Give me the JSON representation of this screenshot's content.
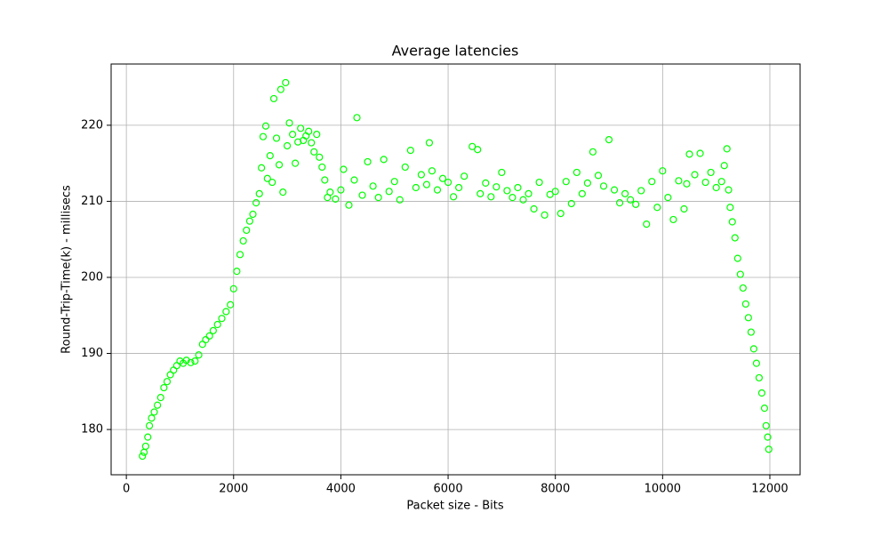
{
  "chart_data": {
    "type": "scatter",
    "title": "Average latencies",
    "x_label": "Packet size - Bits",
    "y_label": "Round-Trip-Time(k) - millisecs",
    "color": "#00ff00",
    "grid": true,
    "xlim": [
      -284,
      12564
    ],
    "ylim": [
      174.05,
      228.05
    ],
    "xticks": [
      0,
      2000,
      4000,
      6000,
      8000,
      10000,
      12000
    ],
    "yticks": [
      180,
      190,
      200,
      210,
      220
    ],
    "x": [
      300,
      330,
      360,
      400,
      430,
      470,
      520,
      580,
      640,
      700,
      760,
      820,
      880,
      940,
      1000,
      1060,
      1120,
      1200,
      1280,
      1350,
      1420,
      1480,
      1550,
      1620,
      1700,
      1780,
      1860,
      1940,
      2000,
      2060,
      2120,
      2180,
      2240,
      2300,
      2360,
      2420,
      2480,
      2520,
      2550,
      2600,
      2630,
      2680,
      2720,
      2750,
      2800,
      2850,
      2880,
      2920,
      2970,
      3000,
      3040,
      3100,
      3150,
      3200,
      3250,
      3300,
      3350,
      3400,
      3450,
      3500,
      3550,
      3600,
      3650,
      3700,
      3750,
      3800,
      3900,
      4000,
      4050,
      4150,
      4250,
      4300,
      4400,
      4500,
      4600,
      4700,
      4800,
      4900,
      5000,
      5100,
      5200,
      5300,
      5400,
      5500,
      5600,
      5650,
      5700,
      5800,
      5900,
      6000,
      6100,
      6200,
      6300,
      6450,
      6550,
      6600,
      6700,
      6800,
      6900,
      7000,
      7100,
      7200,
      7300,
      7400,
      7500,
      7600,
      7700,
      7800,
      7900,
      8000,
      8100,
      8200,
      8300,
      8400,
      8500,
      8600,
      8700,
      8800,
      8900,
      9000,
      9100,
      9200,
      9300,
      9400,
      9500,
      9600,
      9700,
      9800,
      9900,
      10000,
      10100,
      10200,
      10300,
      10400,
      10450,
      10500,
      10600,
      10700,
      10800,
      10900,
      11000,
      11100,
      11150,
      11200,
      11230,
      11260,
      11300,
      11350,
      11400,
      11450,
      11500,
      11550,
      11600,
      11650,
      11700,
      11750,
      11800,
      11850,
      11900,
      11930,
      11960,
      11980
    ],
    "values": [
      176.5,
      177,
      177.8,
      179,
      180.5,
      181.5,
      182.3,
      183.2,
      184.2,
      185.5,
      186.3,
      187.2,
      187.8,
      188.4,
      189.0,
      188.7,
      189.1,
      188.8,
      189.0,
      189.8,
      191.2,
      191.8,
      192.3,
      193.0,
      193.8,
      194.6,
      195.5,
      196.4,
      198.5,
      200.8,
      203.0,
      204.8,
      206.2,
      207.4,
      208.3,
      209.8,
      211.0,
      214.4,
      218.5,
      219.9,
      213.0,
      216.0,
      212.5,
      223.5,
      218.3,
      214.8,
      224.7,
      211.2,
      225.6,
      217.3,
      220.3,
      218.8,
      215.0,
      217.8,
      219.6,
      218.0,
      218.6,
      219.2,
      217.7,
      216.5,
      218.8,
      215.8,
      214.5,
      212.8,
      210.5,
      211.2,
      210.3,
      211.5,
      214.2,
      209.5,
      212.8,
      221.0,
      210.8,
      215.2,
      212.0,
      210.5,
      215.5,
      211.3,
      212.6,
      210.2,
      214.5,
      216.7,
      211.8,
      213.5,
      212.2,
      217.7,
      214.0,
      211.5,
      213.0,
      212.5,
      210.6,
      211.8,
      213.3,
      217.2,
      216.8,
      211.0,
      212.4,
      210.6,
      211.9,
      213.8,
      211.4,
      210.5,
      211.8,
      210.2,
      211.0,
      209.0,
      212.5,
      208.2,
      210.9,
      211.3,
      208.4,
      212.6,
      209.7,
      213.8,
      211.0,
      212.4,
      216.5,
      213.4,
      212.0,
      218.1,
      211.5,
      209.8,
      211.0,
      210.2,
      209.6,
      211.4,
      207.0,
      212.6,
      209.2,
      214.0,
      210.5,
      207.6,
      212.7,
      209.0,
      212.3,
      216.2,
      213.5,
      216.3,
      212.5,
      213.8,
      211.8,
      212.6,
      214.7,
      216.9,
      211.5,
      209.2,
      207.3,
      205.2,
      202.5,
      200.4,
      198.6,
      196.5,
      194.7,
      192.8,
      190.6,
      188.7,
      186.8,
      184.8,
      182.8,
      180.5,
      179.0,
      177.4
    ]
  }
}
